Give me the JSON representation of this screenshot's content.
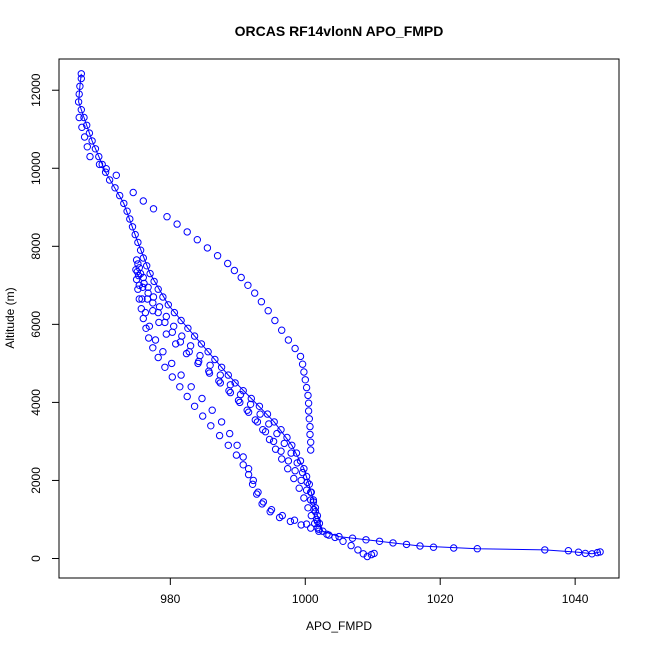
{
  "chart_data": {
    "type": "scatter",
    "title": "ORCAS RF14vlonN APO_FMPD",
    "xlabel": "APO_FMPD",
    "ylabel": "Altitude (m)",
    "xlim": [
      963.5,
      1046.5
    ],
    "ylim": [
      -500,
      12800
    ],
    "x_ticks": [
      980,
      1000,
      1020,
      1040
    ],
    "y_ticks": [
      0,
      2000,
      4000,
      6000,
      8000,
      10000,
      12000
    ],
    "grid": false,
    "color": "#0000ff",
    "series": [
      {
        "points": [
          [
            966.8,
            12420
          ],
          [
            966.8,
            12300
          ],
          [
            966.6,
            12100
          ],
          [
            966.5,
            11900
          ],
          [
            966.4,
            11700
          ],
          [
            966.8,
            11500
          ],
          [
            967.2,
            11300
          ],
          [
            967.6,
            11100
          ],
          [
            968.0,
            10900
          ],
          [
            968.4,
            10700
          ],
          [
            968.9,
            10500
          ],
          [
            969.4,
            10300
          ],
          [
            969.9,
            10100
          ],
          [
            970.4,
            9900
          ],
          [
            971.0,
            9700
          ],
          [
            971.8,
            9500
          ],
          [
            972.5,
            9300
          ],
          [
            973.1,
            9100
          ],
          [
            973.6,
            8900
          ],
          [
            974.0,
            8700
          ],
          [
            974.4,
            8500
          ],
          [
            974.8,
            8300
          ],
          [
            975.2,
            8100
          ],
          [
            975.6,
            7900
          ],
          [
            976.0,
            7700
          ],
          [
            976.5,
            7500
          ],
          [
            977.0,
            7300
          ],
          [
            977.6,
            7100
          ],
          [
            978.2,
            6900
          ],
          [
            978.9,
            6700
          ],
          [
            979.7,
            6500
          ],
          [
            980.6,
            6300
          ],
          [
            981.6,
            6100
          ],
          [
            982.6,
            5900
          ],
          [
            983.6,
            5700
          ],
          [
            984.6,
            5500
          ],
          [
            985.6,
            5300
          ],
          [
            986.6,
            5100
          ],
          [
            987.6,
            4900
          ],
          [
            988.6,
            4700
          ],
          [
            989.6,
            4500
          ],
          [
            990.8,
            4300
          ],
          [
            992.0,
            4100
          ],
          [
            993.2,
            3900
          ],
          [
            994.4,
            3700
          ],
          [
            995.4,
            3500
          ],
          [
            996.4,
            3300
          ],
          [
            997.3,
            3100
          ],
          [
            998.0,
            2900
          ],
          [
            998.7,
            2700
          ],
          [
            999.3,
            2500
          ],
          [
            999.8,
            2300
          ],
          [
            1000.2,
            2100
          ],
          [
            1000.6,
            1900
          ],
          [
            1000.9,
            1700
          ],
          [
            1001.2,
            1500
          ],
          [
            1001.5,
            1300
          ],
          [
            1001.8,
            1100
          ],
          [
            1002.1,
            900
          ],
          [
            1002.6,
            700
          ],
          [
            1003.5,
            600
          ],
          [
            1005.0,
            560
          ],
          [
            1007.0,
            520
          ],
          [
            1009.0,
            480
          ],
          [
            1011.0,
            440
          ],
          [
            1013.0,
            400
          ],
          [
            1015.0,
            360
          ],
          [
            1017.0,
            320
          ],
          [
            1019.0,
            290
          ],
          [
            1022.0,
            270
          ],
          [
            1025.5,
            250
          ],
          [
            1035.5,
            220
          ],
          [
            1039.0,
            200
          ],
          [
            1040.5,
            160
          ],
          [
            1041.5,
            130
          ],
          [
            1042.5,
            120
          ],
          [
            1043.3,
            150
          ],
          [
            1043.7,
            170
          ],
          [
            969.5,
            10100
          ],
          [
            970.5,
            9990
          ],
          [
            972.0,
            9820
          ],
          [
            974.5,
            9380
          ],
          [
            976.0,
            9160
          ],
          [
            977.5,
            8960
          ],
          [
            979.5,
            8760
          ],
          [
            981.0,
            8570
          ],
          [
            982.5,
            8370
          ],
          [
            984.0,
            8170
          ],
          [
            985.5,
            7960
          ],
          [
            987.0,
            7760
          ],
          [
            988.5,
            7560
          ],
          [
            989.5,
            7380
          ],
          [
            990.5,
            7200
          ],
          [
            991.5,
            7000
          ],
          [
            992.5,
            6800
          ],
          [
            993.5,
            6580
          ],
          [
            994.5,
            6350
          ],
          [
            995.5,
            6100
          ],
          [
            996.5,
            5850
          ],
          [
            997.5,
            5600
          ],
          [
            998.5,
            5380
          ],
          [
            999.3,
            5180
          ],
          [
            999.6,
            4980
          ],
          [
            999.8,
            4780
          ],
          [
            1000.0,
            4580
          ],
          [
            1000.2,
            4380
          ],
          [
            1000.4,
            4180
          ],
          [
            1000.5,
            3980
          ],
          [
            1000.5,
            3780
          ],
          [
            1000.6,
            3580
          ],
          [
            1000.7,
            3380
          ],
          [
            1000.7,
            3180
          ],
          [
            1000.8,
            2980
          ],
          [
            1000.8,
            2780
          ],
          [
            966.5,
            11300
          ],
          [
            966.9,
            11050
          ],
          [
            967.3,
            10800
          ],
          [
            967.7,
            10550
          ],
          [
            968.1,
            10300
          ],
          [
            975.0,
            7650
          ],
          [
            974.9,
            7400
          ],
          [
            975.0,
            7150
          ],
          [
            975.2,
            6900
          ],
          [
            975.4,
            6650
          ],
          [
            975.7,
            6400
          ],
          [
            976.0,
            6150
          ],
          [
            976.4,
            5900
          ],
          [
            976.8,
            5650
          ],
          [
            977.4,
            5400
          ],
          [
            978.2,
            5150
          ],
          [
            979.2,
            4900
          ],
          [
            980.3,
            4650
          ],
          [
            981.4,
            4400
          ],
          [
            982.5,
            4150
          ],
          [
            983.6,
            3900
          ],
          [
            984.8,
            3650
          ],
          [
            986.0,
            3400
          ],
          [
            987.3,
            3150
          ],
          [
            988.6,
            2900
          ],
          [
            989.8,
            2650
          ],
          [
            990.8,
            2400
          ],
          [
            991.6,
            2150
          ],
          [
            992.2,
            1900
          ],
          [
            992.8,
            1650
          ],
          [
            993.6,
            1400
          ],
          [
            994.8,
            1200
          ],
          [
            996.2,
            1050
          ],
          [
            997.8,
            950
          ],
          [
            999.4,
            860
          ],
          [
            1000.8,
            780
          ],
          [
            1002.0,
            700
          ],
          [
            1003.2,
            620
          ],
          [
            1004.4,
            540
          ],
          [
            1005.6,
            440
          ],
          [
            1006.8,
            330
          ],
          [
            1007.8,
            220
          ],
          [
            1008.6,
            120
          ],
          [
            1009.2,
            50
          ],
          [
            1009.8,
            100
          ],
          [
            1010.2,
            130
          ],
          [
            975.2,
            7550
          ],
          [
            975.6,
            7300
          ],
          [
            976.1,
            7050
          ],
          [
            976.7,
            6800
          ],
          [
            977.4,
            6550
          ],
          [
            978.2,
            6300
          ],
          [
            979.2,
            6050
          ],
          [
            980.3,
            5800
          ],
          [
            981.5,
            5550
          ],
          [
            982.8,
            5300
          ],
          [
            984.2,
            5050
          ],
          [
            985.7,
            4800
          ],
          [
            987.2,
            4550
          ],
          [
            988.7,
            4300
          ],
          [
            990.1,
            4050
          ],
          [
            991.4,
            3800
          ],
          [
            992.6,
            3550
          ],
          [
            993.7,
            3300
          ],
          [
            994.7,
            3050
          ],
          [
            995.6,
            2800
          ],
          [
            996.5,
            2550
          ],
          [
            997.4,
            2300
          ],
          [
            998.3,
            2050
          ],
          [
            999.1,
            1800
          ],
          [
            999.8,
            1550
          ],
          [
            1000.4,
            1300
          ],
          [
            1000.9,
            1100
          ],
          [
            1001.4,
            900
          ],
          [
            1002.0,
            750
          ],
          [
            975.4,
            7450
          ],
          [
            976.0,
            7200
          ],
          [
            976.7,
            6950
          ],
          [
            977.5,
            6700
          ],
          [
            978.4,
            6450
          ],
          [
            979.4,
            6200
          ],
          [
            980.5,
            5950
          ],
          [
            981.7,
            5700
          ],
          [
            983.0,
            5450
          ],
          [
            984.4,
            5200
          ],
          [
            985.9,
            4950
          ],
          [
            987.4,
            4700
          ],
          [
            988.9,
            4450
          ],
          [
            990.4,
            4200
          ],
          [
            991.9,
            3950
          ],
          [
            993.3,
            3700
          ],
          [
            994.6,
            3450
          ],
          [
            995.8,
            3200
          ],
          [
            996.9,
            2950
          ],
          [
            997.9,
            2700
          ],
          [
            998.8,
            2450
          ],
          [
            999.6,
            2200
          ],
          [
            1000.3,
            1950
          ],
          [
            1000.8,
            1700
          ],
          [
            1001.2,
            1450
          ],
          [
            1001.5,
            1200
          ],
          [
            1001.8,
            950
          ],
          [
            975.1,
            7350
          ],
          [
            975.4,
            7000
          ],
          [
            975.8,
            6650
          ],
          [
            976.3,
            6300
          ],
          [
            976.9,
            5950
          ],
          [
            977.8,
            5600
          ],
          [
            978.9,
            5300
          ],
          [
            980.2,
            5000
          ],
          [
            981.6,
            4700
          ],
          [
            983.1,
            4400
          ],
          [
            984.7,
            4100
          ],
          [
            986.2,
            3800
          ],
          [
            987.6,
            3500
          ],
          [
            988.8,
            3200
          ],
          [
            989.9,
            2900
          ],
          [
            990.8,
            2600
          ],
          [
            991.6,
            2300
          ],
          [
            992.3,
            2000
          ],
          [
            993.0,
            1700
          ],
          [
            993.8,
            1450
          ],
          [
            995.0,
            1250
          ],
          [
            996.6,
            1100
          ],
          [
            998.4,
            980
          ],
          [
            1000.2,
            880
          ],
          [
            1001.8,
            790
          ],
          [
            975.3,
            7250
          ],
          [
            975.9,
            6950
          ],
          [
            976.6,
            6650
          ],
          [
            977.4,
            6350
          ],
          [
            978.3,
            6050
          ],
          [
            979.4,
            5750
          ],
          [
            980.8,
            5500
          ],
          [
            982.4,
            5250
          ],
          [
            984.1,
            5000
          ],
          [
            985.8,
            4750
          ],
          [
            987.4,
            4500
          ],
          [
            988.9,
            4250
          ],
          [
            990.3,
            4000
          ],
          [
            991.6,
            3750
          ],
          [
            992.9,
            3500
          ],
          [
            994.1,
            3250
          ],
          [
            995.3,
            3000
          ],
          [
            996.4,
            2750
          ],
          [
            997.5,
            2500
          ],
          [
            998.5,
            2250
          ],
          [
            999.4,
            2000
          ],
          [
            1000.2,
            1750
          ],
          [
            1000.8,
            1500
          ],
          [
            1001.3,
            1250
          ],
          [
            1001.7,
            1000
          ]
        ]
      }
    ],
    "line_points": [
      [
        966.8,
        12420
      ],
      [
        966.6,
        12100
      ],
      [
        966.4,
        11700
      ],
      [
        967.2,
        11300
      ],
      [
        968.4,
        10700
      ],
      [
        970.4,
        9900
      ],
      [
        973.1,
        9100
      ],
      [
        975.2,
        8100
      ],
      [
        977.0,
        7300
      ],
      [
        979.7,
        6500
      ],
      [
        982.6,
        5900
      ],
      [
        985.6,
        5300
      ],
      [
        988.6,
        4700
      ],
      [
        992.0,
        4100
      ],
      [
        995.4,
        3500
      ],
      [
        998.0,
        2900
      ],
      [
        999.8,
        2300
      ],
      [
        1000.9,
        1700
      ],
      [
        1001.8,
        1100
      ],
      [
        1002.6,
        700
      ],
      [
        1005.0,
        560
      ],
      [
        1011.0,
        440
      ],
      [
        1017.0,
        320
      ],
      [
        1025.5,
        250
      ],
      [
        1035.5,
        220
      ],
      [
        1040.5,
        160
      ],
      [
        1042.5,
        120
      ],
      [
        1043.7,
        170
      ]
    ]
  }
}
